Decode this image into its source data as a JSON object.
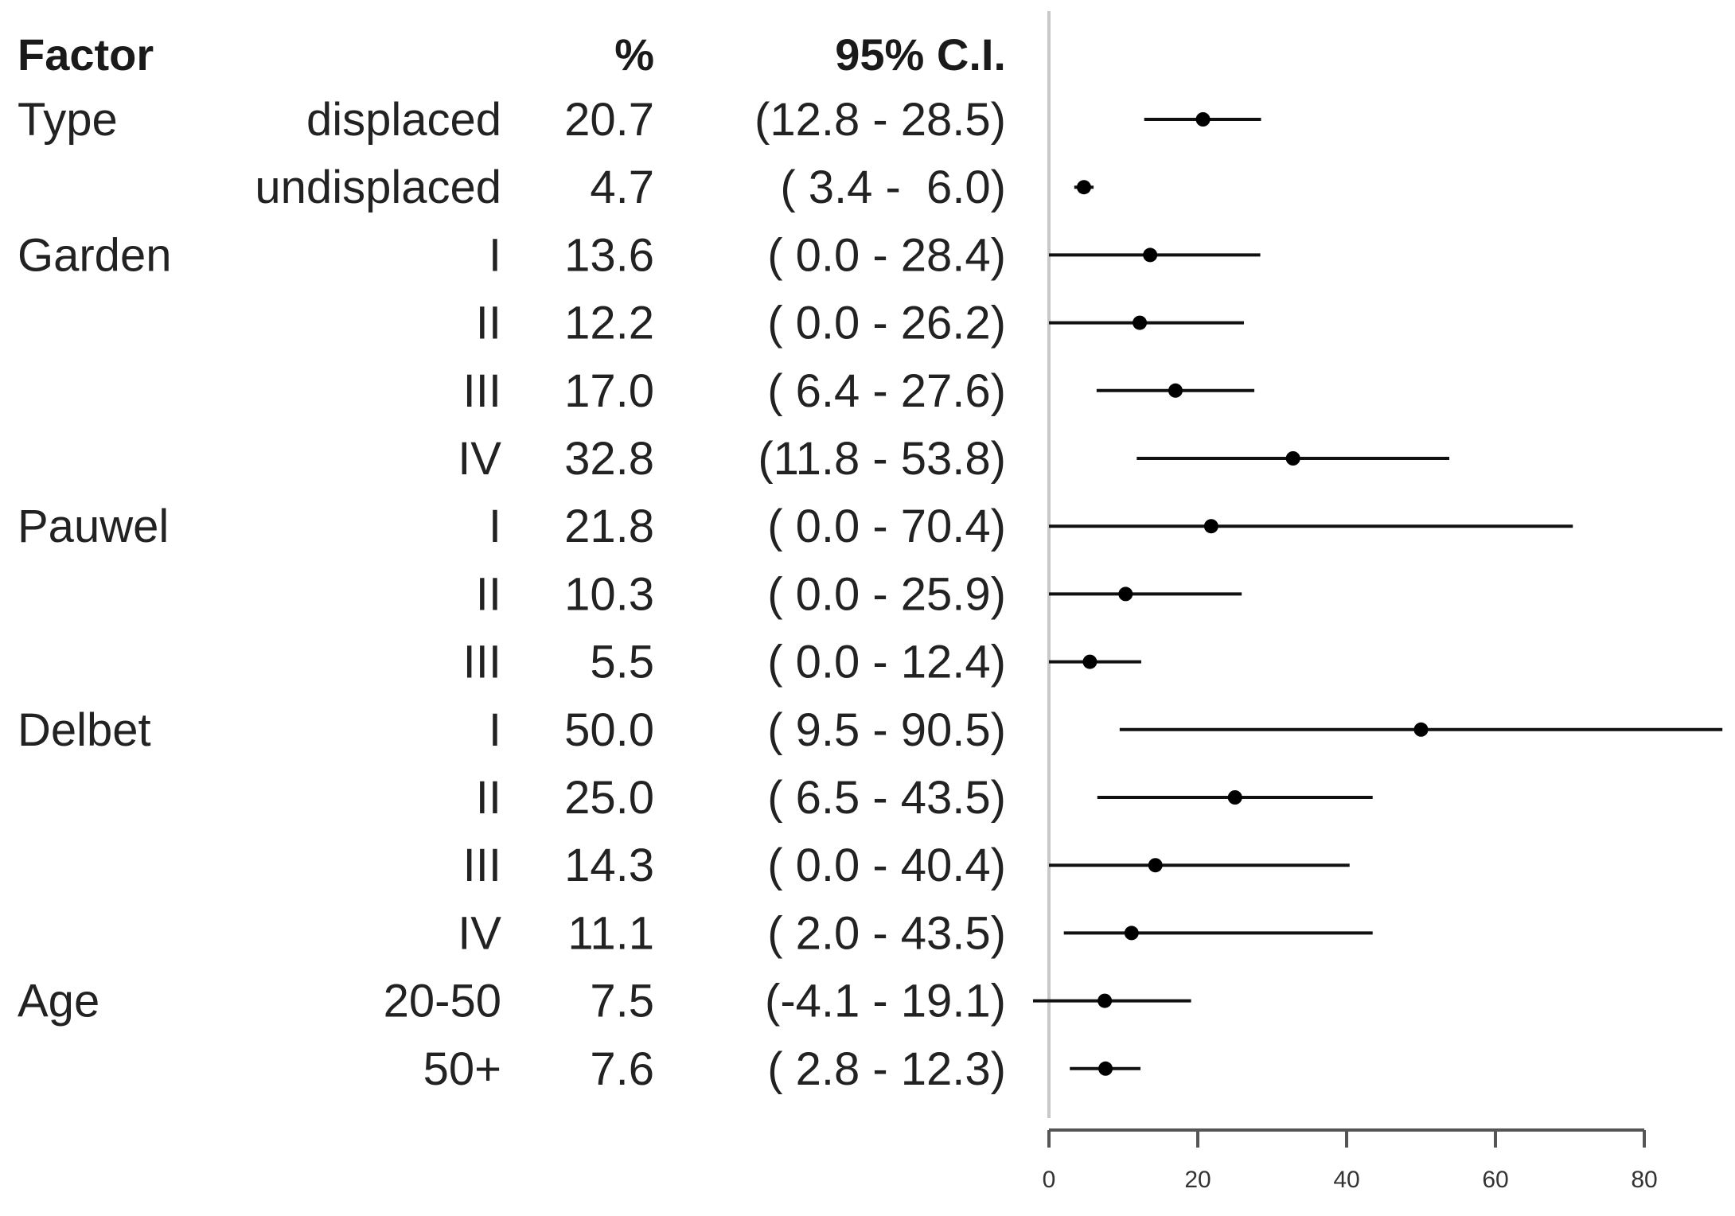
{
  "chart_data": {
    "type": "forest",
    "headers": {
      "factor": "Factor",
      "pct": "%",
      "ci": "95% C.I."
    },
    "rows": [
      {
        "factor": "Type",
        "level": "displaced",
        "pct": "20.7",
        "ci": "(12.8 - 28.5)",
        "est": 20.7,
        "lo": 12.8,
        "hi": 28.5
      },
      {
        "factor": "",
        "level": "undisplaced",
        "pct": "4.7",
        "ci": "( 3.4 -  6.0)",
        "est": 4.7,
        "lo": 3.4,
        "hi": 6.0
      },
      {
        "factor": "Garden",
        "level": "I",
        "pct": "13.6",
        "ci": "( 0.0 - 28.4)",
        "est": 13.6,
        "lo": 0.0,
        "hi": 28.4
      },
      {
        "factor": "",
        "level": "II",
        "pct": "12.2",
        "ci": "( 0.0 - 26.2)",
        "est": 12.2,
        "lo": 0.0,
        "hi": 26.2
      },
      {
        "factor": "",
        "level": "III",
        "pct": "17.0",
        "ci": "( 6.4 - 27.6)",
        "est": 17.0,
        "lo": 6.4,
        "hi": 27.6
      },
      {
        "factor": "",
        "level": "IV",
        "pct": "32.8",
        "ci": "(11.8 - 53.8)",
        "est": 32.8,
        "lo": 11.8,
        "hi": 53.8
      },
      {
        "factor": "Pauwel",
        "level": "I",
        "pct": "21.8",
        "ci": "( 0.0 - 70.4)",
        "est": 21.8,
        "lo": 0.0,
        "hi": 70.4
      },
      {
        "factor": "",
        "level": "II",
        "pct": "10.3",
        "ci": "( 0.0 - 25.9)",
        "est": 10.3,
        "lo": 0.0,
        "hi": 25.9
      },
      {
        "factor": "",
        "level": "III",
        "pct": "5.5",
        "ci": "( 0.0 - 12.4)",
        "est": 5.5,
        "lo": 0.0,
        "hi": 12.4
      },
      {
        "factor": "Delbet",
        "level": "I",
        "pct": "50.0",
        "ci": "( 9.5 - 90.5)",
        "est": 50.0,
        "lo": 9.5,
        "hi": 90.5
      },
      {
        "factor": "",
        "level": "II",
        "pct": "25.0",
        "ci": "( 6.5 - 43.5)",
        "est": 25.0,
        "lo": 6.5,
        "hi": 43.5
      },
      {
        "factor": "",
        "level": "III",
        "pct": "14.3",
        "ci": "( 0.0 - 40.4)",
        "est": 14.3,
        "lo": 0.0,
        "hi": 40.4
      },
      {
        "factor": "",
        "level": "IV",
        "pct": "11.1",
        "ci": "( 2.0 - 43.5)",
        "est": 11.1,
        "lo": 2.0,
        "hi": 43.5
      },
      {
        "factor": "Age",
        "level": "20-50",
        "pct": "7.5",
        "ci": "(-4.1 - 19.1)",
        "est": 7.5,
        "lo": -4.1,
        "hi": 19.1
      },
      {
        "factor": "",
        "level": "50+",
        "pct": "7.6",
        "ci": "( 2.8 - 12.3)",
        "est": 7.6,
        "lo": 2.8,
        "hi": 12.3
      }
    ],
    "x_ticks": [
      "0",
      "20",
      "40",
      "60",
      "80"
    ],
    "xlim": [
      0,
      80
    ],
    "reference_line": 0,
    "grid": false,
    "legend": "none"
  }
}
